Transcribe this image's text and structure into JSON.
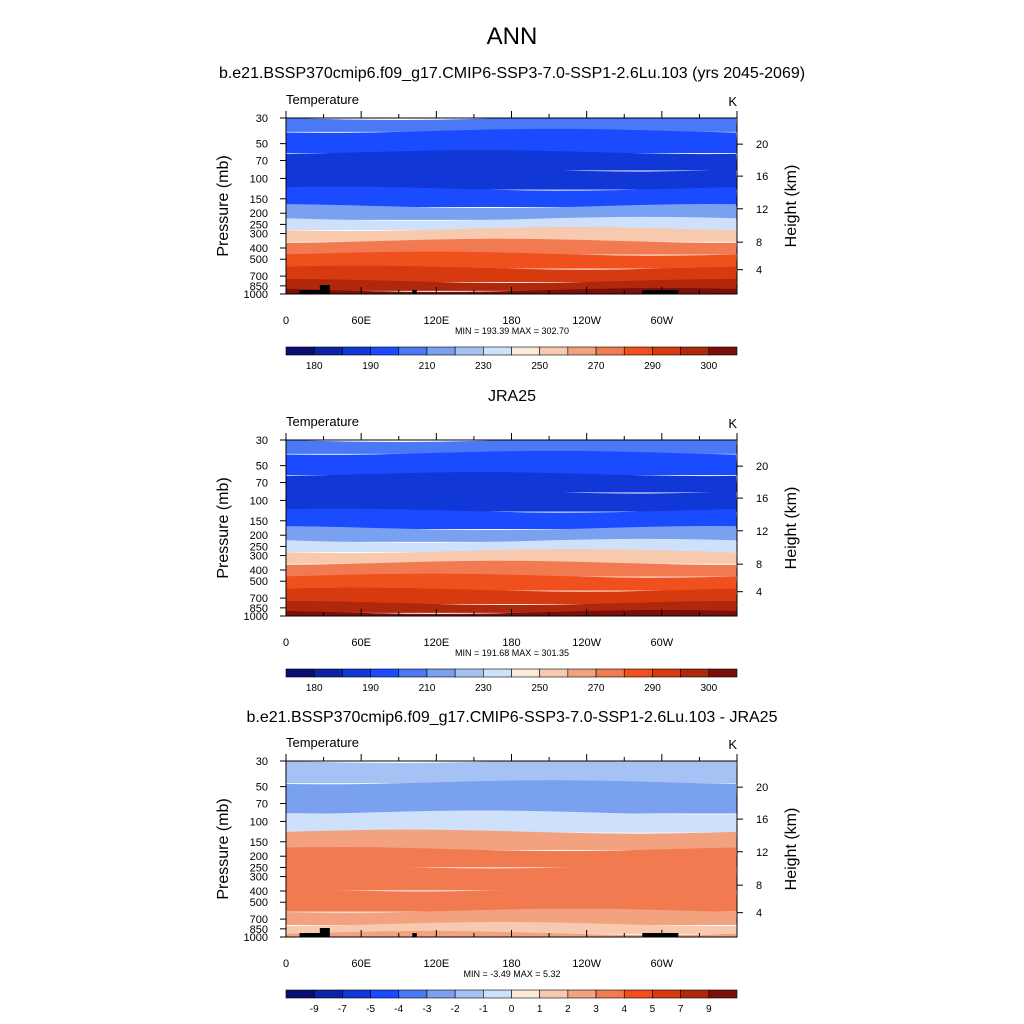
{
  "figure": {
    "title": "ANN"
  },
  "chart_data": [
    {
      "type": "heatmap",
      "title": "b.e21.BSSP370cmip6.f09_g17.CMIP6-SSP3-7.0-SSP1-2.6Lu.103 (yrs 2045-2069)",
      "variable": "Temperature",
      "units": "K",
      "xlabel": "",
      "ylabel": "Pressure (mb)",
      "ylabel_right": "Height (km)",
      "x_ticks": [
        "0",
        "60E",
        "120E",
        "180",
        "120W",
        "60W"
      ],
      "y_ticks": [
        "30",
        "50",
        "70",
        "100",
        "150",
        "200",
        "250",
        "300",
        "400",
        "500",
        "700",
        "850",
        "1000"
      ],
      "y_right_ticks": [
        "20",
        "16",
        "12",
        "8",
        "4"
      ],
      "y_scale": "log",
      "stats": "MIN = 193.39  MAX = 302.70",
      "colorbar_labels": [
        "180",
        "190",
        "210",
        "230",
        "250",
        "270",
        "290",
        "300"
      ],
      "colorbar_colors": [
        "#0a0d74",
        "#0c23a8",
        "#1137d6",
        "#1a4bff",
        "#4b79f5",
        "#7aa0f0",
        "#a6c2f4",
        "#cfe0fa",
        "#fbe9dc",
        "#f7c9ae",
        "#f3a280",
        "#f27a50",
        "#f04f1e",
        "#d73a0f",
        "#b0280c",
        "#7d0f0b"
      ],
      "levels_hpa": [
        30,
        50,
        70,
        100,
        150,
        200,
        250,
        300,
        400,
        500,
        700,
        850,
        1000
      ],
      "profile_band_index": [
        4,
        3,
        2,
        2,
        3,
        5,
        7,
        9,
        11,
        12,
        13,
        14,
        15
      ],
      "terrain": "topography masked near 1000 hPa around 30E, 100E and 60W"
    },
    {
      "type": "heatmap",
      "title": "JRA25",
      "variable": "Temperature",
      "units": "K",
      "xlabel": "",
      "ylabel": "Pressure (mb)",
      "ylabel_right": "Height (km)",
      "x_ticks": [
        "0",
        "60E",
        "120E",
        "180",
        "120W",
        "60W"
      ],
      "y_ticks": [
        "30",
        "50",
        "70",
        "100",
        "150",
        "200",
        "250",
        "300",
        "400",
        "500",
        "700",
        "850",
        "1000"
      ],
      "y_right_ticks": [
        "20",
        "16",
        "12",
        "8",
        "4"
      ],
      "y_scale": "log",
      "stats": "MIN = 191.68  MAX = 301.35",
      "colorbar_labels": [
        "180",
        "190",
        "210",
        "230",
        "250",
        "270",
        "290",
        "300"
      ],
      "colorbar_colors": [
        "#0a0d74",
        "#0c23a8",
        "#1137d6",
        "#1a4bff",
        "#4b79f5",
        "#7aa0f0",
        "#a6c2f4",
        "#cfe0fa",
        "#fbe9dc",
        "#f7c9ae",
        "#f3a280",
        "#f27a50",
        "#f04f1e",
        "#d73a0f",
        "#b0280c",
        "#7d0f0b"
      ],
      "levels_hpa": [
        30,
        50,
        70,
        100,
        150,
        200,
        250,
        300,
        400,
        500,
        700,
        850,
        1000
      ],
      "profile_band_index": [
        4,
        3,
        2,
        2,
        3,
        5,
        7,
        9,
        11,
        12,
        13,
        14,
        15
      ]
    },
    {
      "type": "heatmap",
      "title": "b.e21.BSSP370cmip6.f09_g17.CMIP6-SSP3-7.0-SSP1-2.6Lu.103 - JRA25",
      "variable": "Temperature",
      "units": "K",
      "xlabel": "",
      "ylabel": "Pressure (mb)",
      "ylabel_right": "Height (km)",
      "x_ticks": [
        "0",
        "60E",
        "120E",
        "180",
        "120W",
        "60W"
      ],
      "y_ticks": [
        "30",
        "50",
        "70",
        "100",
        "150",
        "200",
        "250",
        "300",
        "400",
        "500",
        "700",
        "850",
        "1000"
      ],
      "y_right_ticks": [
        "20",
        "16",
        "12",
        "8",
        "4"
      ],
      "y_scale": "log",
      "stats": "MIN =  -3.49  MAX =   5.32",
      "colorbar_labels": [
        "-9",
        "-7",
        "-5",
        "-4",
        "-3",
        "-2",
        "-1",
        "0",
        "1",
        "2",
        "3",
        "4",
        "5",
        "7",
        "9"
      ],
      "colorbar_colors": [
        "#0a0d74",
        "#0c23a8",
        "#1137d6",
        "#1a4bff",
        "#4b79f5",
        "#7aa0f0",
        "#a6c2f4",
        "#cfe0fa",
        "#fbe9dc",
        "#f7c9ae",
        "#f3a280",
        "#f27a50",
        "#f04f1e",
        "#d73a0f",
        "#b0280c",
        "#7d0f0b"
      ],
      "levels_hpa": [
        30,
        70,
        100,
        150,
        200,
        300,
        500,
        700,
        850,
        1000
      ],
      "profile_band_index": [
        6,
        5,
        7,
        10,
        11,
        11,
        11,
        10,
        9,
        10
      ],
      "terrain": "topography masked near 1000 hPa around 30E, 100E and 60W"
    }
  ]
}
